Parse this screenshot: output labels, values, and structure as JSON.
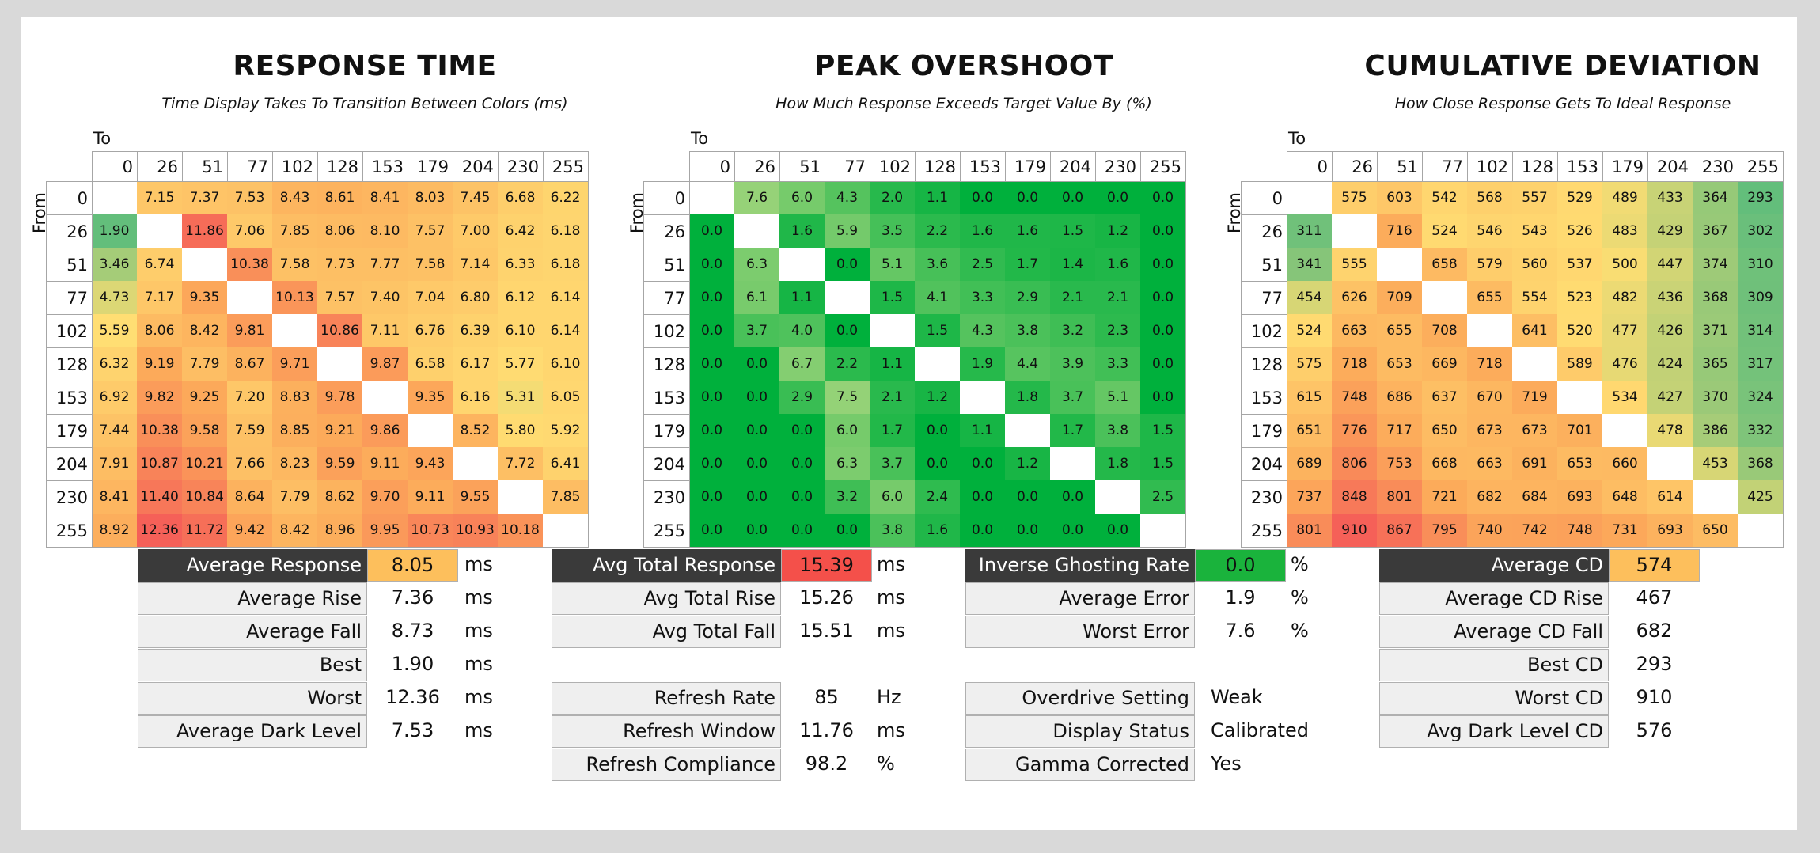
{
  "colors": {
    "page_bg": "#d9d9d9",
    "panel_bg": "#ffffff",
    "header_dark": "#3a3a3a",
    "label_bg": "#efefef",
    "avg_response_highlight": "#fdbf5c",
    "avg_total_response_highlight": "#f4504a",
    "inverse_ghosting_highlight": "#1ab33c",
    "average_cd_highlight": "#fdbf5c"
  },
  "labels": {
    "to": "To",
    "from": "From"
  },
  "levels": [
    "0",
    "26",
    "51",
    "77",
    "102",
    "128",
    "153",
    "179",
    "204",
    "230",
    "255"
  ],
  "chart_data": [
    {
      "type": "heatmap",
      "title": "RESPONSE TIME",
      "subtitle": "Time Display Takes To Transition Between Colors (ms)",
      "xlabel": "To",
      "ylabel": "From",
      "x": [
        "0",
        "26",
        "51",
        "77",
        "102",
        "128",
        "153",
        "179",
        "204",
        "230",
        "255"
      ],
      "y": [
        "0",
        "26",
        "51",
        "77",
        "102",
        "128",
        "153",
        "179",
        "204",
        "230",
        "255"
      ],
      "color_scale": "green-low-red-high",
      "values": [
        [
          "",
          "7.15",
          "7.37",
          "7.53",
          "8.43",
          "8.61",
          "8.41",
          "8.03",
          "7.45",
          "6.68",
          "6.22"
        ],
        [
          "1.90",
          "",
          "11.86",
          "7.06",
          "7.85",
          "8.06",
          "8.10",
          "7.57",
          "7.00",
          "6.42",
          "6.18"
        ],
        [
          "3.46",
          "6.74",
          "",
          "10.38",
          "7.58",
          "7.73",
          "7.77",
          "7.58",
          "7.14",
          "6.33",
          "6.18"
        ],
        [
          "4.73",
          "7.17",
          "9.35",
          "",
          "10.13",
          "7.57",
          "7.40",
          "7.04",
          "6.80",
          "6.12",
          "6.14"
        ],
        [
          "5.59",
          "8.06",
          "8.42",
          "9.81",
          "",
          "10.86",
          "7.11",
          "6.76",
          "6.39",
          "6.10",
          "6.14"
        ],
        [
          "6.32",
          "9.19",
          "7.79",
          "8.67",
          "9.71",
          "",
          "9.87",
          "6.58",
          "6.17",
          "5.77",
          "6.10"
        ],
        [
          "6.92",
          "9.82",
          "9.25",
          "7.20",
          "8.83",
          "9.78",
          "",
          "9.35",
          "6.16",
          "5.31",
          "6.05"
        ],
        [
          "7.44",
          "10.38",
          "9.58",
          "7.59",
          "8.85",
          "9.21",
          "9.86",
          "",
          "8.52",
          "5.80",
          "5.92"
        ],
        [
          "7.91",
          "10.87",
          "10.21",
          "7.66",
          "8.23",
          "9.59",
          "9.11",
          "9.43",
          "",
          "7.72",
          "6.41"
        ],
        [
          "8.41",
          "11.40",
          "10.84",
          "8.64",
          "7.79",
          "8.62",
          "9.70",
          "9.11",
          "9.55",
          "",
          "7.85"
        ],
        [
          "8.92",
          "12.36",
          "11.72",
          "9.42",
          "8.42",
          "8.96",
          "9.95",
          "10.73",
          "10.93",
          "10.18",
          ""
        ]
      ],
      "range": [
        1.9,
        12.36
      ]
    },
    {
      "type": "heatmap",
      "title": "PEAK OVERSHOOT",
      "subtitle": "How Much Response Exceeds Target Value By (%)",
      "xlabel": "To",
      "ylabel": "From",
      "x": [
        "0",
        "26",
        "51",
        "77",
        "102",
        "128",
        "153",
        "179",
        "204",
        "230",
        "255"
      ],
      "y": [
        "0",
        "26",
        "51",
        "77",
        "102",
        "128",
        "153",
        "179",
        "204",
        "230",
        "255"
      ],
      "color_scale": "green-low",
      "values": [
        [
          "",
          "7.6",
          "6.0",
          "4.3",
          "2.0",
          "1.1",
          "0.0",
          "0.0",
          "0.0",
          "0.0",
          "0.0"
        ],
        [
          "0.0",
          "",
          "1.6",
          "5.9",
          "3.5",
          "2.2",
          "1.6",
          "1.6",
          "1.5",
          "1.2",
          "0.0"
        ],
        [
          "0.0",
          "6.3",
          "",
          "0.0",
          "5.1",
          "3.6",
          "2.5",
          "1.7",
          "1.4",
          "1.6",
          "0.0"
        ],
        [
          "0.0",
          "6.1",
          "1.1",
          "",
          "1.5",
          "4.1",
          "3.3",
          "2.9",
          "2.1",
          "2.1",
          "0.0"
        ],
        [
          "0.0",
          "3.7",
          "4.0",
          "0.0",
          "",
          "1.5",
          "4.3",
          "3.8",
          "3.2",
          "2.3",
          "0.0"
        ],
        [
          "0.0",
          "0.0",
          "6.7",
          "2.2",
          "1.1",
          "",
          "1.9",
          "4.4",
          "3.9",
          "3.3",
          "0.0"
        ],
        [
          "0.0",
          "0.0",
          "2.9",
          "7.5",
          "2.1",
          "1.2",
          "",
          "1.8",
          "3.7",
          "5.1",
          "0.0"
        ],
        [
          "0.0",
          "0.0",
          "0.0",
          "6.0",
          "1.7",
          "0.0",
          "1.1",
          "",
          "1.7",
          "3.8",
          "1.5"
        ],
        [
          "0.0",
          "0.0",
          "0.0",
          "6.3",
          "3.7",
          "0.0",
          "0.0",
          "1.2",
          "",
          "1.8",
          "1.5"
        ],
        [
          "0.0",
          "0.0",
          "0.0",
          "3.2",
          "6.0",
          "2.4",
          "0.0",
          "0.0",
          "0.0",
          "",
          "2.5"
        ],
        [
          "0.0",
          "0.0",
          "0.0",
          "0.0",
          "3.8",
          "1.6",
          "0.0",
          "0.0",
          "0.0",
          "0.0",
          ""
        ]
      ],
      "range": [
        0,
        7.6
      ]
    },
    {
      "type": "heatmap",
      "title": "CUMULATIVE DEVIATION",
      "subtitle": "How Close Response Gets To Ideal Response",
      "xlabel": "To",
      "ylabel": "From",
      "x": [
        "0",
        "26",
        "51",
        "77",
        "102",
        "128",
        "153",
        "179",
        "204",
        "230",
        "255"
      ],
      "y": [
        "0",
        "26",
        "51",
        "77",
        "102",
        "128",
        "153",
        "179",
        "204",
        "230",
        "255"
      ],
      "color_scale": "green-low-red-high",
      "values": [
        [
          "",
          "575",
          "603",
          "542",
          "568",
          "557",
          "529",
          "489",
          "433",
          "364",
          "293"
        ],
        [
          "311",
          "",
          "716",
          "524",
          "546",
          "543",
          "526",
          "483",
          "429",
          "367",
          "302"
        ],
        [
          "341",
          "555",
          "",
          "658",
          "579",
          "560",
          "537",
          "500",
          "447",
          "374",
          "310"
        ],
        [
          "454",
          "626",
          "709",
          "",
          "655",
          "554",
          "523",
          "482",
          "436",
          "368",
          "309"
        ],
        [
          "524",
          "663",
          "655",
          "708",
          "",
          "641",
          "520",
          "477",
          "426",
          "371",
          "314"
        ],
        [
          "575",
          "718",
          "653",
          "669",
          "718",
          "",
          "589",
          "476",
          "424",
          "365",
          "317"
        ],
        [
          "615",
          "748",
          "686",
          "637",
          "670",
          "719",
          "",
          "534",
          "427",
          "370",
          "324"
        ],
        [
          "651",
          "776",
          "717",
          "650",
          "673",
          "673",
          "701",
          "",
          "478",
          "386",
          "332"
        ],
        [
          "689",
          "806",
          "753",
          "668",
          "663",
          "691",
          "653",
          "660",
          "",
          "453",
          "368"
        ],
        [
          "737",
          "848",
          "801",
          "721",
          "682",
          "684",
          "693",
          "648",
          "614",
          "",
          "425"
        ],
        [
          "801",
          "910",
          "867",
          "795",
          "740",
          "742",
          "748",
          "731",
          "693",
          "650",
          ""
        ]
      ],
      "range": [
        293,
        910
      ]
    }
  ],
  "stats": {
    "response": {
      "average_response": {
        "label": "Average Response",
        "value": "8.05",
        "unit": "ms"
      },
      "average_rise": {
        "label": "Average Rise",
        "value": "7.36",
        "unit": "ms"
      },
      "average_fall": {
        "label": "Average Fall",
        "value": "8.73",
        "unit": "ms"
      },
      "best": {
        "label": "Best",
        "value": "1.90",
        "unit": "ms"
      },
      "worst": {
        "label": "Worst",
        "value": "12.36",
        "unit": "ms"
      },
      "average_dark_level": {
        "label": "Average Dark Level",
        "value": "7.53",
        "unit": "ms"
      }
    },
    "total": {
      "avg_total_response": {
        "label": "Avg Total Response",
        "value": "15.39",
        "unit": "ms"
      },
      "avg_total_rise": {
        "label": "Avg Total Rise",
        "value": "15.26",
        "unit": "ms"
      },
      "avg_total_fall": {
        "label": "Avg Total Fall",
        "value": "15.51",
        "unit": "ms"
      },
      "refresh_rate": {
        "label": "Refresh Rate",
        "value": "85",
        "unit": "Hz"
      },
      "refresh_window": {
        "label": "Refresh Window",
        "value": "11.76",
        "unit": "ms"
      },
      "refresh_compliance": {
        "label": "Refresh Compliance",
        "value": "98.2",
        "unit": "%"
      }
    },
    "overshoot": {
      "inverse_ghosting_rate": {
        "label": "Inverse Ghosting Rate",
        "value": "0.0",
        "unit": "%"
      },
      "average_error": {
        "label": "Average Error",
        "value": "1.9",
        "unit": "%"
      },
      "worst_error": {
        "label": "Worst Error",
        "value": "7.6",
        "unit": "%"
      },
      "overdrive_setting": {
        "label": "Overdrive Setting",
        "value": "Weak"
      },
      "display_status": {
        "label": "Display Status",
        "value": "Calibrated"
      },
      "gamma_corrected": {
        "label": "Gamma Corrected",
        "value": "Yes"
      }
    },
    "cd": {
      "average_cd": {
        "label": "Average CD",
        "value": "574"
      },
      "average_cd_rise": {
        "label": "Average CD Rise",
        "value": "467"
      },
      "average_cd_fall": {
        "label": "Average CD Fall",
        "value": "682"
      },
      "best_cd": {
        "label": "Best CD",
        "value": "293"
      },
      "worst_cd": {
        "label": "Worst CD",
        "value": "910"
      },
      "avg_dark_level_cd": {
        "label": "Avg Dark Level CD",
        "value": "576"
      }
    }
  }
}
